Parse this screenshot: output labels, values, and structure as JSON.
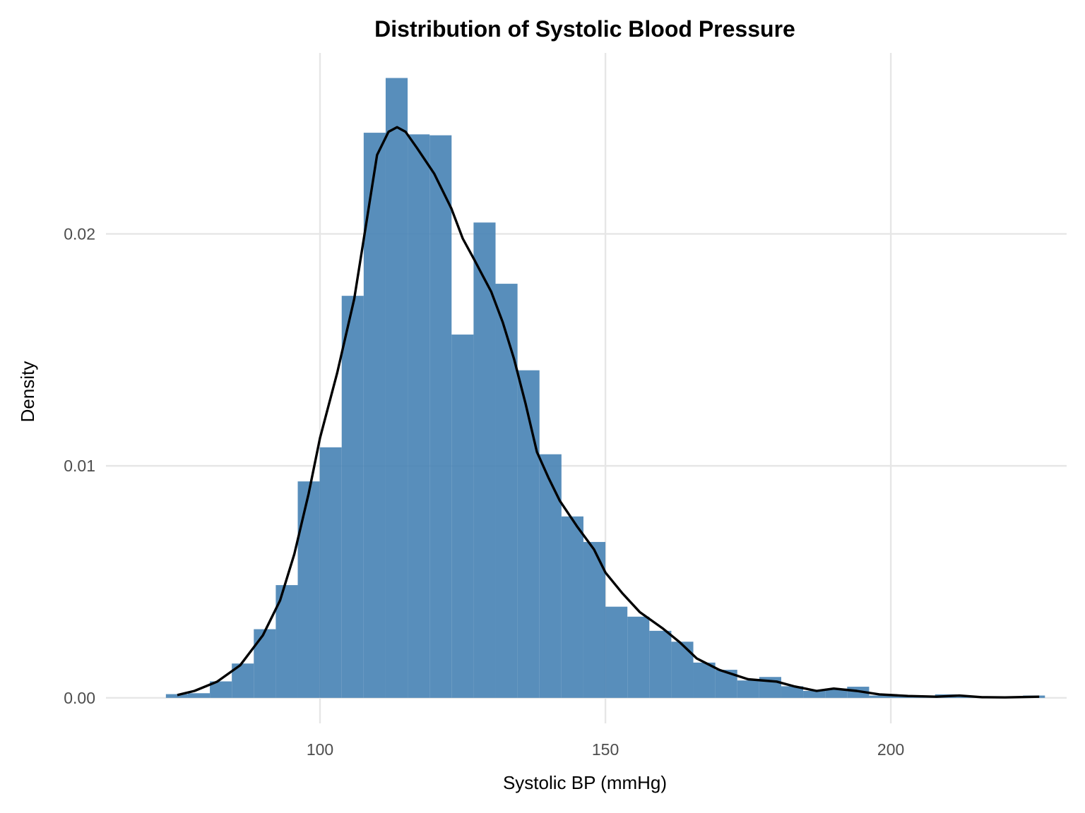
{
  "chart_data": {
    "type": "bar",
    "subtype": "histogram-with-density",
    "title": "Distribution of Systolic Blood Pressure",
    "xlabel": "Systolic BP (mmHg)",
    "ylabel": "Density",
    "xlim": [
      62.5,
      230.8
    ],
    "ylim": [
      -0.0011,
      0.0278
    ],
    "x_ticks": [
      100,
      150,
      200
    ],
    "x_tick_labels": [
      "100",
      "150",
      "200"
    ],
    "y_ticks": [
      0.0,
      0.01,
      0.02
    ],
    "y_tick_labels": [
      "0.00",
      "0.01",
      "0.02"
    ],
    "grid": true,
    "legend": "none",
    "colors": {
      "bars": "#4682b4",
      "density_line": "#000000",
      "grid": "#e6e6e6"
    },
    "histogram": {
      "bin_width": 3.85,
      "bins": [
        {
          "x0": 73.0,
          "x1": 76.85,
          "density": 0.00016
        },
        {
          "x0": 76.85,
          "x1": 80.7,
          "density": 0.0002
        },
        {
          "x0": 80.7,
          "x1": 84.55,
          "density": 0.00071
        },
        {
          "x0": 84.55,
          "x1": 88.4,
          "density": 0.00148
        },
        {
          "x0": 88.4,
          "x1": 92.25,
          "density": 0.00296
        },
        {
          "x0": 92.25,
          "x1": 96.1,
          "density": 0.00486
        },
        {
          "x0": 96.1,
          "x1": 99.95,
          "density": 0.00933
        },
        {
          "x0": 99.95,
          "x1": 103.8,
          "density": 0.0108
        },
        {
          "x0": 103.8,
          "x1": 107.65,
          "density": 0.01733
        },
        {
          "x0": 107.65,
          "x1": 111.5,
          "density": 0.02436
        },
        {
          "x0": 111.5,
          "x1": 115.35,
          "density": 0.02672
        },
        {
          "x0": 115.35,
          "x1": 119.2,
          "density": 0.02429
        },
        {
          "x0": 119.2,
          "x1": 123.05,
          "density": 0.02425
        },
        {
          "x0": 123.05,
          "x1": 126.9,
          "density": 0.01566
        },
        {
          "x0": 126.9,
          "x1": 130.75,
          "density": 0.02049
        },
        {
          "x0": 130.75,
          "x1": 134.6,
          "density": 0.01785
        },
        {
          "x0": 134.6,
          "x1": 138.45,
          "density": 0.01412
        },
        {
          "x0": 138.45,
          "x1": 142.3,
          "density": 0.0105
        },
        {
          "x0": 142.3,
          "x1": 146.15,
          "density": 0.00782
        },
        {
          "x0": 146.15,
          "x1": 150.0,
          "density": 0.00672
        },
        {
          "x0": 150.0,
          "x1": 153.85,
          "density": 0.00393
        },
        {
          "x0": 153.85,
          "x1": 157.7,
          "density": 0.0035
        },
        {
          "x0": 157.7,
          "x1": 161.55,
          "density": 0.00289
        },
        {
          "x0": 161.55,
          "x1": 165.4,
          "density": 0.00242
        },
        {
          "x0": 165.4,
          "x1": 169.25,
          "density": 0.00152
        },
        {
          "x0": 169.25,
          "x1": 173.1,
          "density": 0.00121
        },
        {
          "x0": 173.1,
          "x1": 176.95,
          "density": 0.00075
        },
        {
          "x0": 176.95,
          "x1": 180.8,
          "density": 0.0009
        },
        {
          "x0": 180.8,
          "x1": 184.65,
          "density": 0.0005
        },
        {
          "x0": 184.65,
          "x1": 188.5,
          "density": 0.0003
        },
        {
          "x0": 188.5,
          "x1": 192.35,
          "density": 0.0004
        },
        {
          "x0": 192.35,
          "x1": 196.2,
          "density": 0.00048
        },
        {
          "x0": 196.2,
          "x1": 200.05,
          "density": 0.0001
        },
        {
          "x0": 200.05,
          "x1": 203.9,
          "density": 0.0001
        },
        {
          "x0": 203.9,
          "x1": 207.75,
          "density": 5e-05
        },
        {
          "x0": 207.75,
          "x1": 211.6,
          "density": 0.00015
        },
        {
          "x0": 211.6,
          "x1": 215.45,
          "density": 5e-05
        },
        {
          "x0": 215.45,
          "x1": 219.3,
          "density": 5e-05
        },
        {
          "x0": 219.3,
          "x1": 223.15,
          "density": 5e-05
        },
        {
          "x0": 223.15,
          "x1": 227.0,
          "density": 0.0001
        }
      ]
    },
    "density_curve": {
      "x": [
        75.0,
        78.0,
        82.0,
        86.0,
        90.0,
        93.0,
        95.5,
        98.0,
        100.0,
        103.0,
        106.0,
        108.0,
        110.0,
        112.0,
        113.5,
        115.0,
        117.0,
        120.0,
        123.0,
        125.0,
        127.0,
        130.0,
        132.0,
        134.0,
        136.0,
        138.0,
        140.0,
        142.0,
        145.0,
        148.0,
        150.0,
        153.0,
        156.0,
        160.0,
        163.0,
        166.0,
        170.0,
        175.0,
        180.0,
        183.0,
        187.0,
        190.0,
        194.0,
        198.0,
        203.0,
        208.0,
        212.0,
        216.0,
        220.0,
        226.0
      ],
      "y": [
        0.00012,
        0.0003,
        0.0007,
        0.0014,
        0.0027,
        0.0042,
        0.0062,
        0.0088,
        0.0112,
        0.014,
        0.0172,
        0.0203,
        0.0234,
        0.0244,
        0.0246,
        0.0244,
        0.0237,
        0.0226,
        0.0211,
        0.0198,
        0.0189,
        0.0175,
        0.0162,
        0.0146,
        0.0127,
        0.0106,
        0.0095,
        0.0085,
        0.0074,
        0.0064,
        0.0054,
        0.0045,
        0.0037,
        0.003,
        0.0024,
        0.0017,
        0.0012,
        0.0008,
        0.0007,
        0.0005,
        0.0003,
        0.0004,
        0.0003,
        0.00015,
        8e-05,
        5e-05,
        0.0001,
        3e-05,
        2e-05,
        5e-05
      ]
    }
  }
}
